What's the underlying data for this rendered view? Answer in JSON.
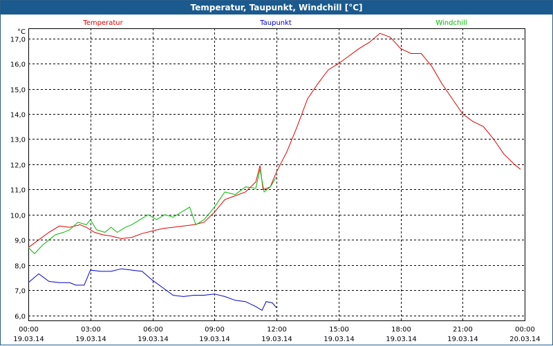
{
  "window": {
    "title": "Temperatur, Taupunkt, Windchill [°C]"
  },
  "chart_data": {
    "type": "line",
    "title": "Temperatur, Taupunkt, Windchill [°C]",
    "ylabel": "°C",
    "ylim": [
      5.8,
      17.4
    ],
    "yticks": [
      6.0,
      7.0,
      8.0,
      9.0,
      10.0,
      11.0,
      12.0,
      13.0,
      14.0,
      15.0,
      16.0,
      17.0
    ],
    "ytick_labels": [
      "6,0",
      "7,0",
      "8,0",
      "9,0",
      "10,0",
      "11,0",
      "12,0",
      "13,0",
      "14,0",
      "15,0",
      "16,0",
      "17,0"
    ],
    "xlim": [
      0,
      24
    ],
    "xticks": [
      {
        "x": 0,
        "time": "00:00",
        "date": "19.03.14"
      },
      {
        "x": 3,
        "time": "03:00",
        "date": "19.03.14"
      },
      {
        "x": 6,
        "time": "06:00",
        "date": "19.03.14"
      },
      {
        "x": 9,
        "time": "09:00",
        "date": "19.03.14"
      },
      {
        "x": 12,
        "time": "12:00",
        "date": "19.03.14"
      },
      {
        "x": 15,
        "time": "15:00",
        "date": "19.03.14"
      },
      {
        "x": 18,
        "time": "18:00",
        "date": "19.03.14"
      },
      {
        "x": 21,
        "time": "21:00",
        "date": "19.03.14"
      },
      {
        "x": 24,
        "time": "00:00",
        "date": "20.03.14"
      }
    ],
    "grid": true,
    "legend_position": "top",
    "series": [
      {
        "name": "Temperatur",
        "color": "#e00000",
        "points": [
          [
            0,
            8.7
          ],
          [
            0.5,
            9.0
          ],
          [
            1,
            9.3
          ],
          [
            1.5,
            9.55
          ],
          [
            2,
            9.5
          ],
          [
            2.5,
            9.6
          ],
          [
            2.8,
            9.5
          ],
          [
            3.2,
            9.3
          ],
          [
            3.6,
            9.2
          ],
          [
            4,
            9.15
          ],
          [
            4.5,
            9.05
          ],
          [
            5,
            9.1
          ],
          [
            5.5,
            9.25
          ],
          [
            6,
            9.35
          ],
          [
            6.5,
            9.45
          ],
          [
            7,
            9.5
          ],
          [
            7.5,
            9.55
          ],
          [
            8,
            9.6
          ],
          [
            8.5,
            9.7
          ],
          [
            9,
            10.1
          ],
          [
            9.5,
            10.6
          ],
          [
            10,
            10.75
          ],
          [
            10.5,
            10.9
          ],
          [
            11,
            11.3
          ],
          [
            11.2,
            11.95
          ],
          [
            11.35,
            11.0
          ],
          [
            11.7,
            11.1
          ],
          [
            12,
            11.7
          ],
          [
            12.5,
            12.5
          ],
          [
            13,
            13.5
          ],
          [
            13.5,
            14.6
          ],
          [
            14,
            15.2
          ],
          [
            14.5,
            15.75
          ],
          [
            15,
            16.0
          ],
          [
            15.5,
            16.3
          ],
          [
            16,
            16.6
          ],
          [
            16.5,
            16.85
          ],
          [
            17,
            17.2
          ],
          [
            17.5,
            17.05
          ],
          [
            18,
            16.6
          ],
          [
            18.5,
            16.4
          ],
          [
            19,
            16.4
          ],
          [
            19.5,
            15.9
          ],
          [
            20,
            15.2
          ],
          [
            20.5,
            14.6
          ],
          [
            21,
            14.0
          ],
          [
            21.5,
            13.7
          ],
          [
            22,
            13.5
          ],
          [
            22.5,
            13.0
          ],
          [
            23,
            12.4
          ],
          [
            23.5,
            12.0
          ],
          [
            23.8,
            11.8
          ]
        ]
      },
      {
        "name": "Taupunkt",
        "color": "#0000cc",
        "points": [
          [
            0,
            7.3
          ],
          [
            0.5,
            7.65
          ],
          [
            1,
            7.35
          ],
          [
            1.5,
            7.3
          ],
          [
            2,
            7.3
          ],
          [
            2.3,
            7.2
          ],
          [
            2.7,
            7.2
          ],
          [
            3,
            7.8
          ],
          [
            3.5,
            7.75
          ],
          [
            4,
            7.75
          ],
          [
            4.5,
            7.85
          ],
          [
            5,
            7.8
          ],
          [
            5.5,
            7.75
          ],
          [
            6,
            7.4
          ],
          [
            6.5,
            7.1
          ],
          [
            7,
            6.8
          ],
          [
            7.5,
            6.75
          ],
          [
            8,
            6.8
          ],
          [
            8.5,
            6.8
          ],
          [
            9,
            6.85
          ],
          [
            9.5,
            6.75
          ],
          [
            10,
            6.6
          ],
          [
            10.5,
            6.55
          ],
          [
            11,
            6.35
          ],
          [
            11.3,
            6.2
          ],
          [
            11.5,
            6.55
          ],
          [
            11.8,
            6.5
          ],
          [
            12,
            6.3
          ]
        ]
      },
      {
        "name": "Windchill",
        "color": "#00bb00",
        "points": [
          [
            0,
            8.7
          ],
          [
            0.3,
            8.45
          ],
          [
            0.7,
            8.8
          ],
          [
            1,
            9.0
          ],
          [
            1.3,
            9.2
          ],
          [
            1.7,
            9.3
          ],
          [
            2,
            9.4
          ],
          [
            2.4,
            9.7
          ],
          [
            2.8,
            9.6
          ],
          [
            3,
            9.8
          ],
          [
            3.3,
            9.4
          ],
          [
            3.7,
            9.3
          ],
          [
            4,
            9.5
          ],
          [
            4.3,
            9.3
          ],
          [
            4.7,
            9.5
          ],
          [
            5,
            9.6
          ],
          [
            5.4,
            9.8
          ],
          [
            5.8,
            10.0
          ],
          [
            6.2,
            9.8
          ],
          [
            6.6,
            10.0
          ],
          [
            7,
            9.9
          ],
          [
            7.4,
            10.1
          ],
          [
            7.8,
            10.3
          ],
          [
            8.1,
            9.6
          ],
          [
            8.5,
            9.8
          ],
          [
            9,
            10.3
          ],
          [
            9.5,
            10.9
          ],
          [
            10,
            10.8
          ],
          [
            10.5,
            11.1
          ],
          [
            11,
            11.05
          ],
          [
            11.2,
            11.8
          ],
          [
            11.4,
            10.9
          ],
          [
            11.7,
            11.1
          ],
          [
            12,
            11.5
          ]
        ]
      }
    ]
  }
}
